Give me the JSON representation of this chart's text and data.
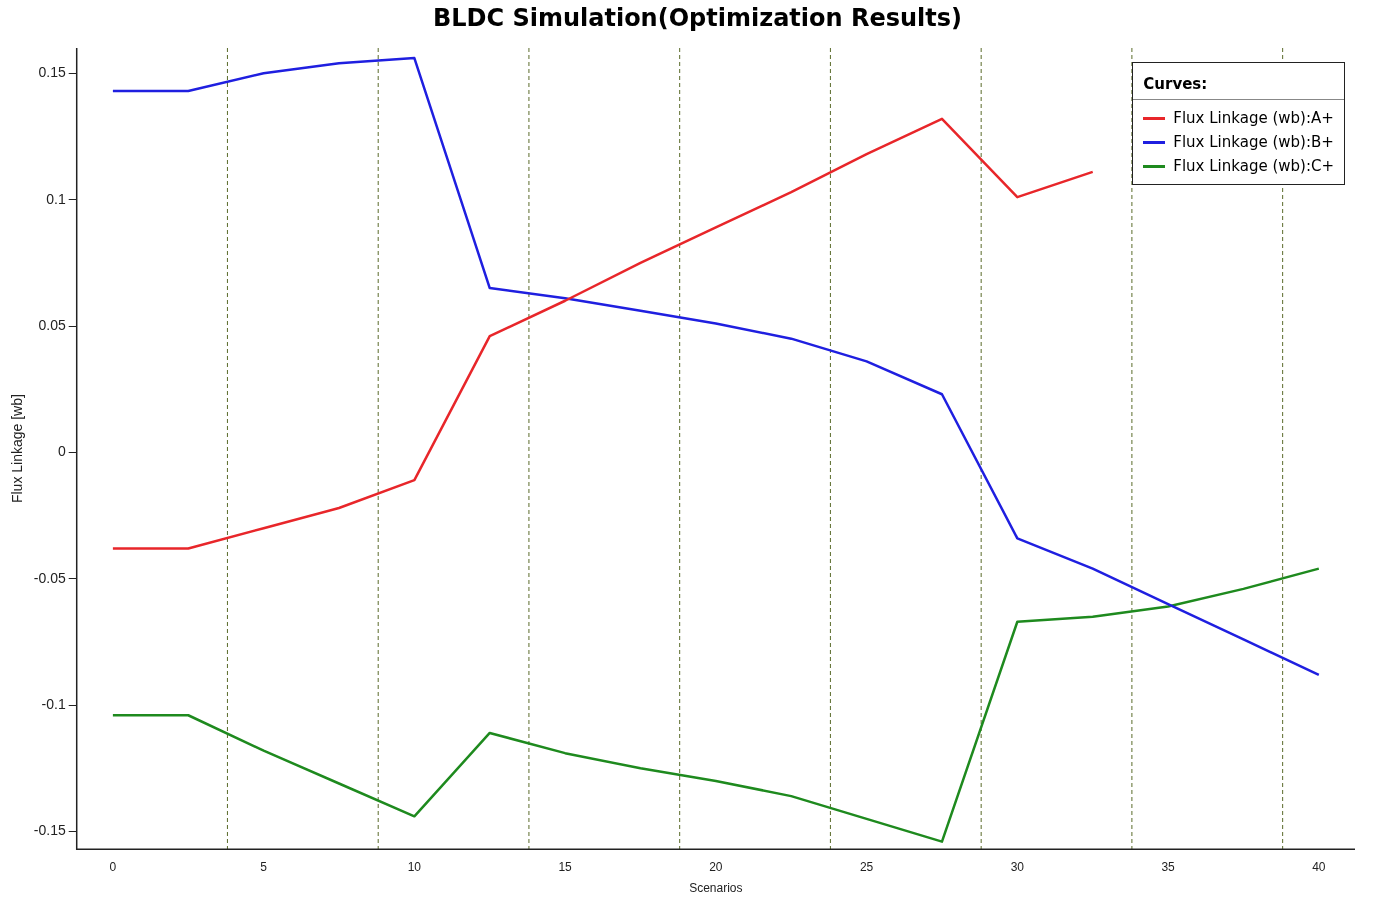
{
  "chart_data": {
    "type": "line",
    "title": "BLDC Simulation(Optimization Results)",
    "xlabel": "Scenarios",
    "ylabel": "Flux Linkage [wb]",
    "legend_title": "Curves:",
    "legend": "top right",
    "grid": false,
    "line_style": "solid",
    "marker": "none",
    "x": [
      0,
      2.5,
      5,
      7.5,
      10,
      12.5,
      15,
      17.5,
      20,
      22.5,
      25,
      27.5,
      30,
      32.5,
      35,
      37.5,
      40
    ],
    "xlim": [
      -1.2,
      41.2
    ],
    "xticks": [
      0,
      5,
      10,
      15,
      20,
      25,
      30,
      35,
      40
    ],
    "ylim": [
      -0.157,
      0.16
    ],
    "yticks": [
      -0.15,
      -0.1,
      -0.05,
      0,
      0.05,
      0.1,
      0.15
    ],
    "series": [
      {
        "name": "Flux Linkage (wb):A+",
        "color": "#e8262a",
        "values": [
          -0.038,
          -0.038,
          -0.03,
          -0.022,
          -0.011,
          0.046,
          0.06,
          0.075,
          0.089,
          0.103,
          0.118,
          0.132,
          0.101,
          0.111,
          null,
          null,
          null
        ]
      },
      {
        "name": "Flux Linkage (wb):B+",
        "color": "#1f1fe0",
        "values": [
          0.143,
          0.143,
          0.15,
          0.154,
          0.156,
          0.065,
          0.061,
          0.056,
          0.051,
          0.045,
          0.036,
          0.023,
          -0.034,
          -0.046,
          -0.06,
          -0.074,
          -0.088
        ]
      },
      {
        "name": "Flux Linkage (wb):C+",
        "color": "#1e8a1e",
        "values": [
          -0.104,
          -0.104,
          -0.118,
          -0.131,
          -0.144,
          -0.111,
          -0.119,
          -0.125,
          -0.13,
          -0.136,
          -0.145,
          -0.154,
          -0.067,
          -0.065,
          -0.061,
          -0.054,
          -0.046
        ]
      }
    ],
    "ref_lines": [
      {
        "axis": "x",
        "value": 3.8,
        "color": "#5a6b2a",
        "line_style": "dashed"
      },
      {
        "axis": "x",
        "value": 8.8,
        "color": "#5a6b2a",
        "line_style": "dashed"
      },
      {
        "axis": "x",
        "value": 13.8,
        "color": "#5a6b2a",
        "line_style": "dashed"
      },
      {
        "axis": "x",
        "value": 18.8,
        "color": "#5a6b2a",
        "line_style": "dashed"
      },
      {
        "axis": "x",
        "value": 23.8,
        "color": "#5a6b2a",
        "line_style": "dashed"
      },
      {
        "axis": "x",
        "value": 28.8,
        "color": "#5a6b2a",
        "line_style": "dashed"
      },
      {
        "axis": "x",
        "value": 33.8,
        "color": "#5a6b2a",
        "line_style": "dashed"
      },
      {
        "axis": "x",
        "value": 38.8,
        "color": "#5a6b2a",
        "line_style": "dashed"
      }
    ]
  }
}
